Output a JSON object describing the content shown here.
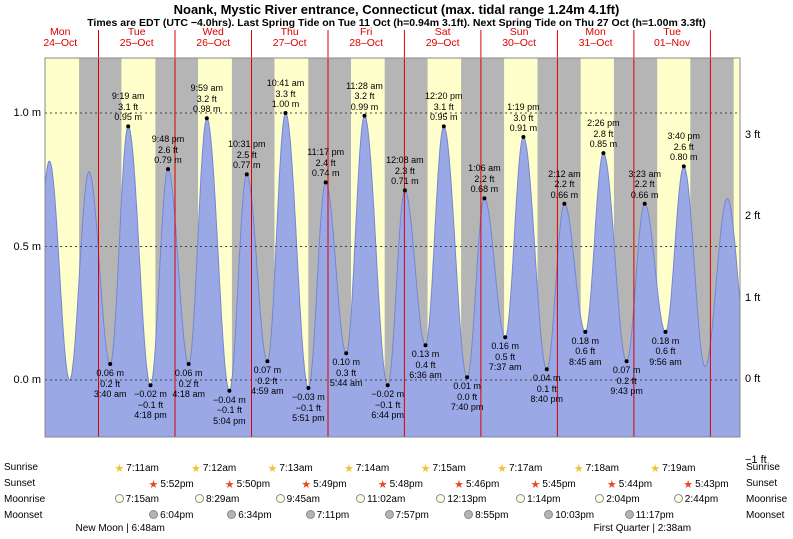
{
  "title": "Noank, Mystic River entrance, Connecticut (max. tidal range 1.24m 4.1ft)",
  "subtitle": "Times are EDT (UTC −4.0hrs). Last Spring Tide on Tue 11 Oct (h=0.94m 3.1ft). Next Spring Tide on Thu 27 Oct (h=1.00m 3.3ft)",
  "days": [
    {
      "name": "Mon",
      "date": "24–Oct"
    },
    {
      "name": "Tue",
      "date": "25–Oct"
    },
    {
      "name": "Wed",
      "date": "26–Oct"
    },
    {
      "name": "Thu",
      "date": "27–Oct"
    },
    {
      "name": "Fri",
      "date": "28–Oct"
    },
    {
      "name": "Sat",
      "date": "29–Oct"
    },
    {
      "name": "Sun",
      "date": "30–Oct"
    },
    {
      "name": "Mon",
      "date": "31–Oct"
    },
    {
      "name": "Tue",
      "date": "01–Nov"
    }
  ],
  "axis": {
    "left_labels": [
      {
        "text": "1.0 m",
        "m": 1.0
      },
      {
        "text": "0.5 m",
        "m": 0.5
      },
      {
        "text": "0.0 m",
        "m": 0.0
      }
    ],
    "right_labels": [
      {
        "text": "3 ft",
        "m": 0.9144
      },
      {
        "text": "2 ft",
        "m": 0.6096
      },
      {
        "text": "1 ft",
        "m": 0.3048
      },
      {
        "text": "0 ft",
        "m": 0
      },
      {
        "text": "−1 ft",
        "m": -0.3048
      }
    ]
  },
  "chart_data": {
    "type": "area",
    "description": "Tide height curve over 9 days; day 0 = Mon 24-Oct; cosine interpolation between high/low tide extremes; yellow bands = daylight, gray = night.",
    "y_unit_left": "m",
    "y_unit_right": "ft",
    "y_gridlines_m": [
      0,
      0.5,
      1.0
    ],
    "tides": [
      {
        "kind": "low",
        "day": 1,
        "time": "3:40 am",
        "m": 0.06,
        "label_m": "0.06 m",
        "label_ft": "0.2 ft"
      },
      {
        "kind": "high",
        "day": 1,
        "time": "9:19 am",
        "m": 0.95,
        "label_m": "0.95 m",
        "label_ft": "3.1 ft"
      },
      {
        "kind": "low",
        "day": 1,
        "time": "4:18 pm",
        "m": -0.02,
        "label_m": "−0.02 m",
        "label_ft": "−0.1 ft"
      },
      {
        "kind": "high",
        "day": 1,
        "time": "9:48 pm",
        "m": 0.79,
        "label_m": "0.79 m",
        "label_ft": "2.6 ft"
      },
      {
        "kind": "low",
        "day": 2,
        "time": "4:18 am",
        "m": 0.06,
        "label_m": "0.06 m",
        "label_ft": "0.2 ft"
      },
      {
        "kind": "high",
        "day": 2,
        "time": "9:59 am",
        "m": 0.98,
        "label_m": "0.98 m",
        "label_ft": "3.2 ft"
      },
      {
        "kind": "low",
        "day": 2,
        "time": "5:04 pm",
        "m": -0.04,
        "label_m": "−0.04 m",
        "label_ft": "−0.1 ft"
      },
      {
        "kind": "high",
        "day": 2,
        "time": "10:31 pm",
        "m": 0.77,
        "label_m": "0.77 m",
        "label_ft": "2.5 ft"
      },
      {
        "kind": "low",
        "day": 3,
        "time": "4:59 am",
        "m": 0.07,
        "label_m": "0.07 m",
        "label_ft": "0.2 ft"
      },
      {
        "kind": "high",
        "day": 3,
        "time": "10:41 am",
        "m": 1.0,
        "label_m": "1.00 m",
        "label_ft": "3.3 ft"
      },
      {
        "kind": "low",
        "day": 3,
        "time": "5:51 pm",
        "m": -0.03,
        "label_m": "−0.03 m",
        "label_ft": "−0.1 ft"
      },
      {
        "kind": "high",
        "day": 3,
        "time": "11:17 pm",
        "m": 0.74,
        "label_m": "0.74 m",
        "label_ft": "2.4 ft"
      },
      {
        "kind": "low",
        "day": 4,
        "time": "5:44 am",
        "m": 0.1,
        "label_m": "0.10 m",
        "label_ft": "0.3 ft"
      },
      {
        "kind": "high",
        "day": 4,
        "time": "11:28 am",
        "m": 0.99,
        "label_m": "0.99 m",
        "label_ft": "3.2 ft"
      },
      {
        "kind": "low",
        "day": 4,
        "time": "6:44 pm",
        "m": -0.02,
        "label_m": "−0.02 m",
        "label_ft": "−0.1 ft"
      },
      {
        "kind": "high",
        "day": 5,
        "time": "12:08 am",
        "m": 0.71,
        "label_m": "0.71 m",
        "label_ft": "2.3 ft"
      },
      {
        "kind": "low",
        "day": 5,
        "time": "6:36 am",
        "m": 0.13,
        "label_m": "0.13 m",
        "label_ft": "0.4 ft"
      },
      {
        "kind": "high",
        "day": 5,
        "time": "12:20 pm",
        "m": 0.95,
        "label_m": "0.95 m",
        "label_ft": "3.1 ft"
      },
      {
        "kind": "low",
        "day": 5,
        "time": "7:40 pm",
        "m": 0.01,
        "label_m": "0.01 m",
        "label_ft": "0.0 ft"
      },
      {
        "kind": "high",
        "day": 6,
        "time": "1:06 am",
        "m": 0.68,
        "label_m": "0.68 m",
        "label_ft": "2.2 ft"
      },
      {
        "kind": "low",
        "day": 6,
        "time": "7:37 am",
        "m": 0.16,
        "label_m": "0.16 m",
        "label_ft": "0.5 ft"
      },
      {
        "kind": "high",
        "day": 6,
        "time": "1:19 pm",
        "m": 0.91,
        "label_m": "0.91 m",
        "label_ft": "3.0 ft"
      },
      {
        "kind": "low",
        "day": 6,
        "time": "8:40 pm",
        "m": 0.04,
        "label_m": "0.04 m",
        "label_ft": "0.1 ft"
      },
      {
        "kind": "high",
        "day": 7,
        "time": "2:12 am",
        "m": 0.66,
        "label_m": "0.66 m",
        "label_ft": "2.2 ft"
      },
      {
        "kind": "low",
        "day": 7,
        "time": "8:45 am",
        "m": 0.18,
        "label_m": "0.18 m",
        "label_ft": "0.6 ft"
      },
      {
        "kind": "high",
        "day": 7,
        "time": "2:26 pm",
        "m": 0.85,
        "label_m": "0.85 m",
        "label_ft": "2.8 ft"
      },
      {
        "kind": "low",
        "day": 7,
        "time": "9:43 pm",
        "m": 0.07,
        "label_m": "0.07 m",
        "label_ft": "0.2 ft"
      },
      {
        "kind": "high",
        "day": 8,
        "time": "3:23 am",
        "m": 0.66,
        "label_m": "0.66 m",
        "label_ft": "2.2 ft"
      },
      {
        "kind": "low",
        "day": 8,
        "time": "9:56 am",
        "m": 0.18,
        "label_m": "0.18 m",
        "label_ft": "0.6 ft"
      },
      {
        "kind": "high",
        "day": 8,
        "time": "3:40 pm",
        "m": 0.8,
        "label_m": "0.80 m",
        "label_ft": "2.6 ft"
      }
    ],
    "unlabeled_extremes": [
      {
        "day": 0,
        "time": "2:30 am",
        "m": 0.02
      },
      {
        "day": 0,
        "time": "8:35 am",
        "m": 0.82
      },
      {
        "day": 0,
        "time": "2:55 pm",
        "m": 0.0
      },
      {
        "day": 0,
        "time": "9:00 pm",
        "m": 0.78
      },
      {
        "day": 8,
        "time": "10:20 pm",
        "m": 0.05
      },
      {
        "day": 9,
        "time": "5:20 am",
        "m": 0.68
      },
      {
        "day": 9,
        "time": "11:40 am",
        "m": 0.12
      }
    ]
  },
  "astro": {
    "row_labels": [
      "Sunrise",
      "Sunset",
      "Moonrise",
      "Moonset"
    ],
    "sunrise": [
      {
        "day": 1,
        "time": "7:11am"
      },
      {
        "day": 2,
        "time": "7:12am"
      },
      {
        "day": 3,
        "time": "7:13am"
      },
      {
        "day": 4,
        "time": "7:14am"
      },
      {
        "day": 5,
        "time": "7:15am"
      },
      {
        "day": 6,
        "time": "7:17am"
      },
      {
        "day": 7,
        "time": "7:18am"
      },
      {
        "day": 8,
        "time": "7:19am"
      }
    ],
    "sunset": [
      {
        "day": 1,
        "time": "5:52pm"
      },
      {
        "day": 2,
        "time": "5:50pm"
      },
      {
        "day": 3,
        "time": "5:49pm"
      },
      {
        "day": 4,
        "time": "5:48pm"
      },
      {
        "day": 5,
        "time": "5:46pm"
      },
      {
        "day": 6,
        "time": "5:45pm"
      },
      {
        "day": 7,
        "time": "5:44pm"
      },
      {
        "day": 8,
        "time": "5:43pm"
      }
    ],
    "moonrise": [
      {
        "day": 1,
        "time": "7:15am"
      },
      {
        "day": 2,
        "time": "8:29am"
      },
      {
        "day": 3,
        "time": "9:45am"
      },
      {
        "day": 4,
        "time": "11:02am"
      },
      {
        "day": 5,
        "time": "12:13pm"
      },
      {
        "day": 6,
        "time": "1:14pm"
      },
      {
        "day": 7,
        "time": "2:04pm"
      },
      {
        "day": 8,
        "time": "2:44pm"
      }
    ],
    "moonset": [
      {
        "day": 1,
        "time": "6:04pm"
      },
      {
        "day": 2,
        "time": "6:34pm"
      },
      {
        "day": 3,
        "time": "7:11pm"
      },
      {
        "day": 4,
        "time": "7:57pm"
      },
      {
        "day": 5,
        "time": "8:55pm"
      },
      {
        "day": 6,
        "time": "10:03pm"
      },
      {
        "day": 7,
        "time": "11:17pm"
      }
    ]
  },
  "moon_phases": [
    {
      "label": "New Moon | 6:48am",
      "day": 1,
      "time": "6:48am"
    },
    {
      "label": "First Quarter | 2:38am",
      "day": 8,
      "time": "2:38am"
    }
  ],
  "colors": {
    "day_band": "#FFFFCC",
    "night_band": "#B5B5B5",
    "tide_fill": "#9AA8E6",
    "tide_stroke": "#7487D0",
    "label_red": "#DD0000",
    "day_divider": "#DD0000",
    "sunrise_icon": "#F2C230",
    "sunset_icon": "#E8491D",
    "moonrise_icon": "#FFFDE6",
    "moonset_icon": "#B4B4B4"
  }
}
